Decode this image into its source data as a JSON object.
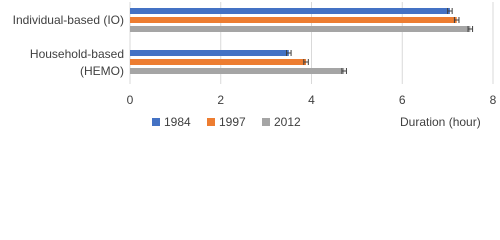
{
  "chart_data": {
    "type": "hbar",
    "x_label": "Duration (hour)",
    "categories": [
      "Individual-based (IO)",
      "Household-based (HEMO)"
    ],
    "series": [
      {
        "name": "1984",
        "color": "#4472c4",
        "values": [
          7.05,
          3.5
        ],
        "errors": [
          0.05,
          0.05
        ]
      },
      {
        "name": "1997",
        "color": "#ed7d31",
        "values": [
          7.2,
          3.88
        ],
        "errors": [
          0.05,
          0.05
        ]
      },
      {
        "name": "2012",
        "color": "#a5a5a5",
        "values": [
          7.5,
          4.72
        ],
        "errors": [
          0.05,
          0.05
        ]
      }
    ],
    "xlim": [
      0,
      8
    ],
    "xticks": [
      0,
      2,
      4,
      6,
      8
    ],
    "grid": true,
    "legend": "bottom"
  }
}
